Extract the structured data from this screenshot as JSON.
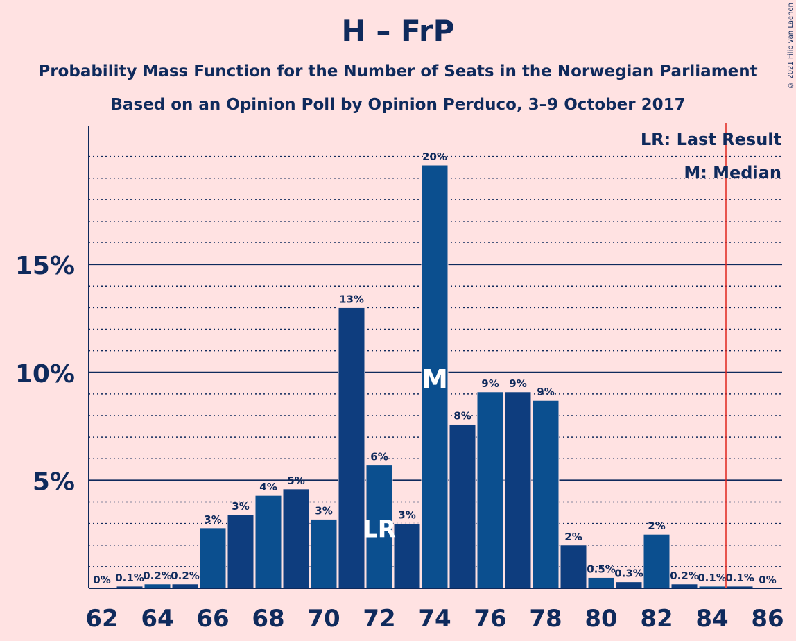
{
  "title": "H – FrP",
  "subtitle1": "Probability Mass Function for the Number of Seats in the Norwegian Parliament",
  "subtitle2": "Based on an Opinion Poll by Opinion Perduco, 3–9 October 2017",
  "copyright": "© 2021 Filip van Laenen",
  "legend": {
    "lr": "LR: Last Result",
    "m": "M: Median"
  },
  "colors": {
    "background": "#FFE2E2",
    "bar": "#0B4F8F",
    "bar_alt": "#0E3D7E",
    "text": "#0F2A5C",
    "last_result_line": "#E0241C"
  },
  "chart_data": {
    "type": "bar",
    "x": [
      62,
      63,
      64,
      65,
      66,
      67,
      68,
      69,
      70,
      71,
      72,
      73,
      74,
      75,
      76,
      77,
      78,
      79,
      80,
      81,
      82,
      83,
      84,
      85,
      86
    ],
    "values": [
      0,
      0.1,
      0.2,
      0.2,
      2.8,
      3.4,
      4.3,
      4.6,
      3.2,
      13.0,
      5.7,
      3.0,
      19.6,
      7.6,
      9.1,
      9.1,
      8.7,
      2.0,
      0.5,
      0.3,
      2.5,
      0.2,
      0.1,
      0.1,
      0
    ],
    "labels": [
      "0%",
      "0.1%",
      "0.2%",
      "0.2%",
      "3%",
      "3%",
      "4%",
      "5%",
      "3%",
      "13%",
      "6%",
      "3%",
      "20%",
      "8%",
      "9%",
      "9%",
      "9%",
      "2%",
      "0.5%",
      "0.3%",
      "2%",
      "0.2%",
      "0.1%",
      "0.1%",
      "0%"
    ],
    "x_tick_labels": [
      "62",
      "64",
      "66",
      "68",
      "70",
      "72",
      "74",
      "76",
      "78",
      "80",
      "82",
      "84",
      "86"
    ],
    "y_tick_labels": [
      "5%",
      "10%",
      "15%"
    ],
    "y_ticks": [
      5,
      10,
      15
    ],
    "ylim": [
      0,
      21.4
    ],
    "last_result": 72,
    "last_result_marker": "LR",
    "median": 74,
    "median_marker": "M",
    "majority_line": 84.5
  }
}
